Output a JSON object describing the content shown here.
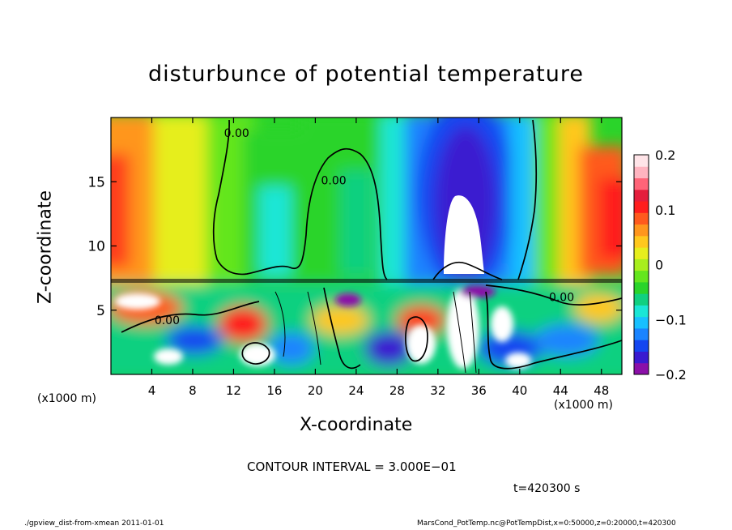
{
  "chart_data": {
    "type": "heatmap",
    "title": "disturbunce of potential temperature",
    "xlabel": "X-coordinate",
    "ylabel": "Z-coordinate",
    "x_unit_left": "(x1000 m)",
    "x_unit_right": "(x1000 m)",
    "xlim": [
      0,
      50
    ],
    "ylim": [
      0,
      20
    ],
    "x_ticks": [
      4,
      8,
      12,
      16,
      20,
      24,
      28,
      32,
      36,
      40,
      44,
      48
    ],
    "y_ticks": [
      5,
      10,
      15
    ],
    "colorbar": {
      "range": [
        -0.2,
        0.2
      ],
      "ticks": [
        {
          "value": 0.2,
          "label": "0.2"
        },
        {
          "value": 0.1,
          "label": "0.1"
        },
        {
          "value": 0.0,
          "label": "0"
        },
        {
          "value": -0.1,
          "label": "−0.1"
        },
        {
          "value": -0.2,
          "label": "−0.2"
        }
      ],
      "colors": [
        "#8b0fa8",
        "#3a1ad0",
        "#1446f0",
        "#1a84ff",
        "#18c0ff",
        "#1ae6d6",
        "#10d080",
        "#2ad42a",
        "#64e61e",
        "#a8ee1e",
        "#e6ee1e",
        "#ffc81e",
        "#ff961e",
        "#ff5a1e",
        "#ff1e1e",
        "#e41e3c",
        "#ff6478",
        "#ffb4c0",
        "#ffe4e8"
      ]
    },
    "contour_labels": [
      {
        "text": "0.00",
        "x": 12.3,
        "z": 18.5
      },
      {
        "text": "0.00",
        "x": 21.8,
        "z": 14.8
      },
      {
        "text": "0.00",
        "x": 44.1,
        "z": 5.7
      },
      {
        "text": "0.00",
        "x": 5.5,
        "z": 3.9
      }
    ],
    "contour_interval": "CONTOUR INTERVAL = 3.000E−01",
    "time": "t=420300 s"
  },
  "footer": {
    "left": "./gpview_dist-from-xmean   2011-01-01",
    "right": "MarsCond_PotTemp.nc@PotTempDist,x=0:50000,z=0:20000,t=420300"
  }
}
